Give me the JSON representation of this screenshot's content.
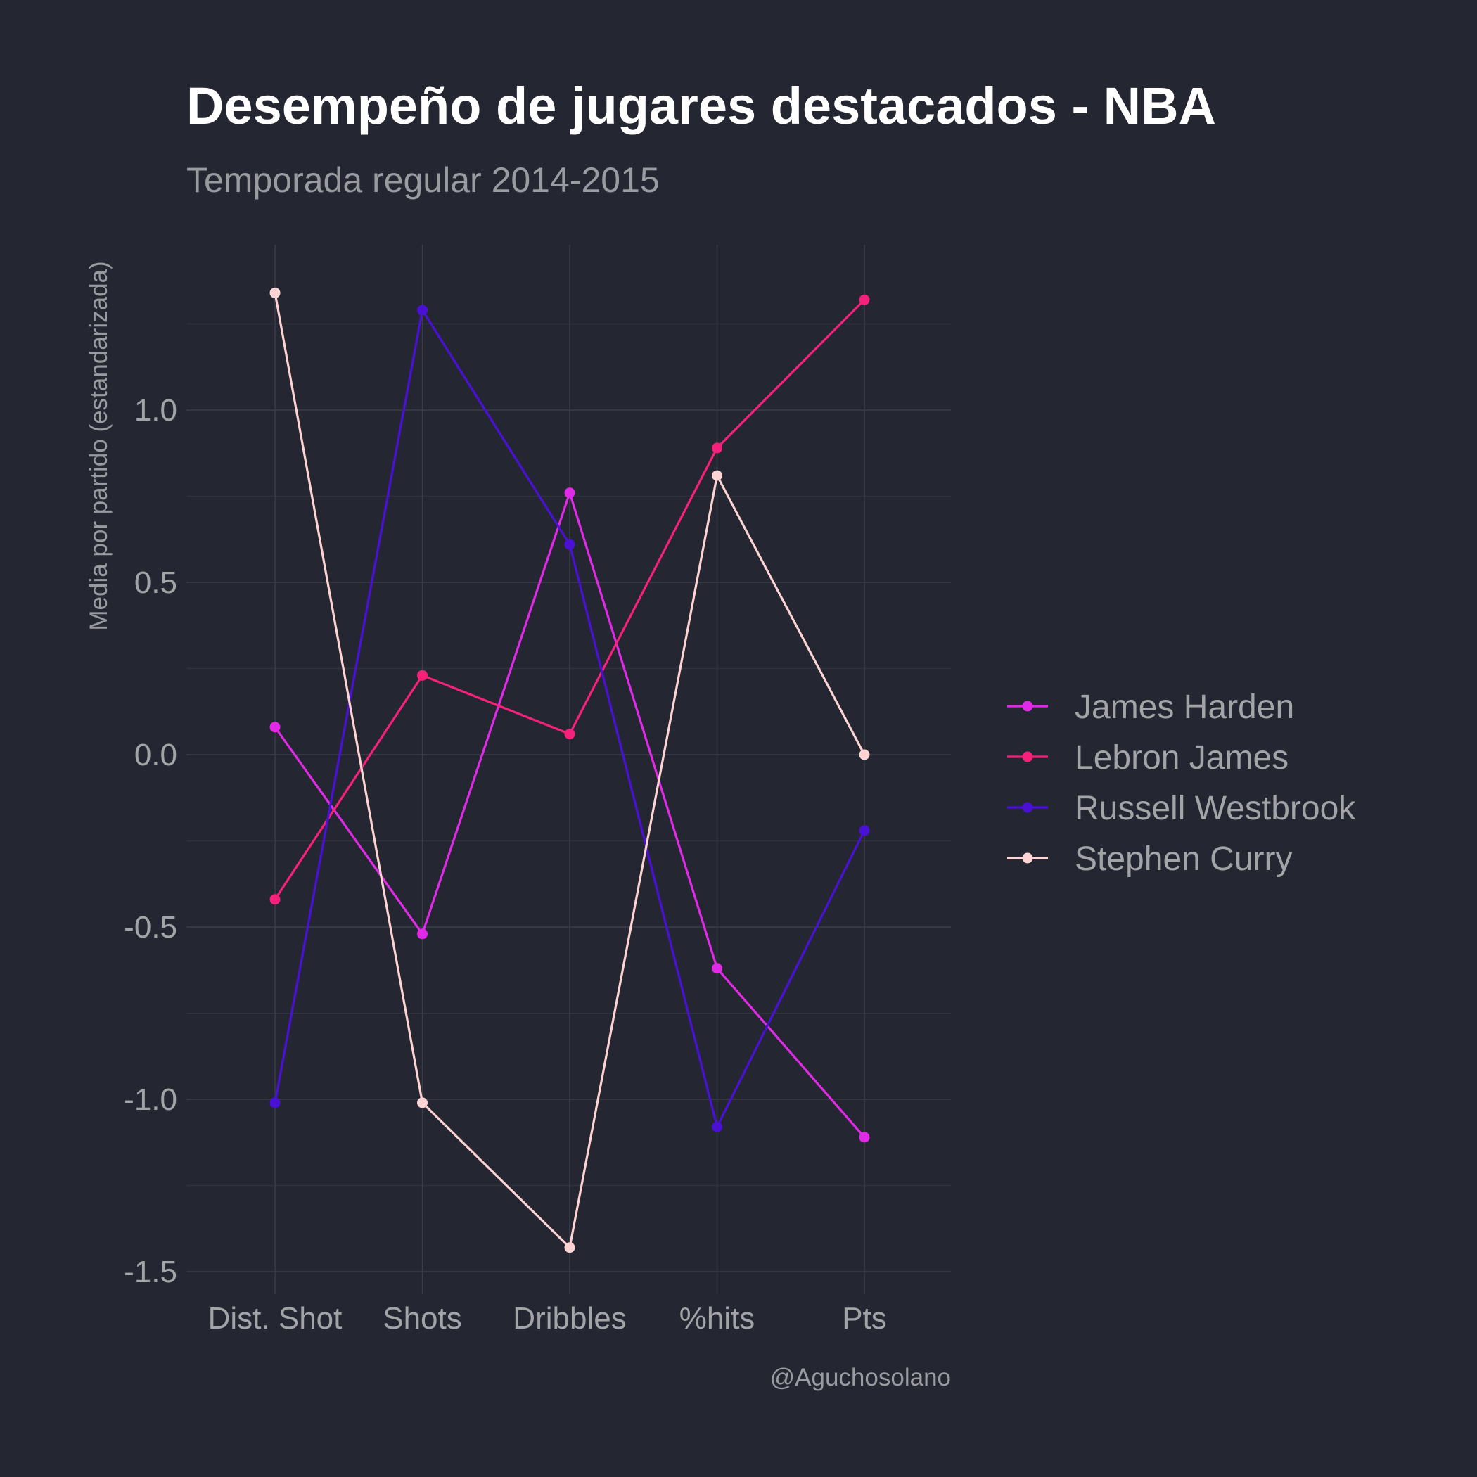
{
  "chart_data": {
    "type": "line",
    "title": "Desempeño de jugares destacados - NBA",
    "subtitle": "Temporada regular 2014-2015",
    "xlabel": "",
    "ylabel": "Media por partido (estandarizada)",
    "caption": "@Aguchosolano",
    "categories": [
      "Dist. Shot",
      "Shots",
      "Dribbles",
      "%hits",
      "Pts"
    ],
    "ylim": [
      -1.55,
      1.48
    ],
    "yticks": [
      -1.5,
      -1.0,
      -0.5,
      0.0,
      0.5,
      1.0
    ],
    "ytick_labels": [
      "-1.5",
      "-1.0",
      "-0.5",
      "0.0",
      "0.5",
      "1.0"
    ],
    "grid": true,
    "legend_position": "right",
    "series": [
      {
        "name": "James Harden",
        "color": "#e12ae8",
        "values": [
          0.08,
          -0.52,
          0.76,
          -0.62,
          -1.11
        ]
      },
      {
        "name": "Lebron James",
        "color": "#f5217a",
        "values": [
          -0.42,
          0.23,
          0.06,
          0.89,
          1.32
        ]
      },
      {
        "name": "Russell Westbrook",
        "color": "#4a10d6",
        "values": [
          -1.01,
          1.29,
          0.61,
          -1.08,
          -0.22
        ]
      },
      {
        "name": "Stephen Curry",
        "color": "#fdd3d3",
        "values": [
          1.34,
          -1.01,
          -1.43,
          0.81,
          0.0
        ]
      }
    ]
  }
}
